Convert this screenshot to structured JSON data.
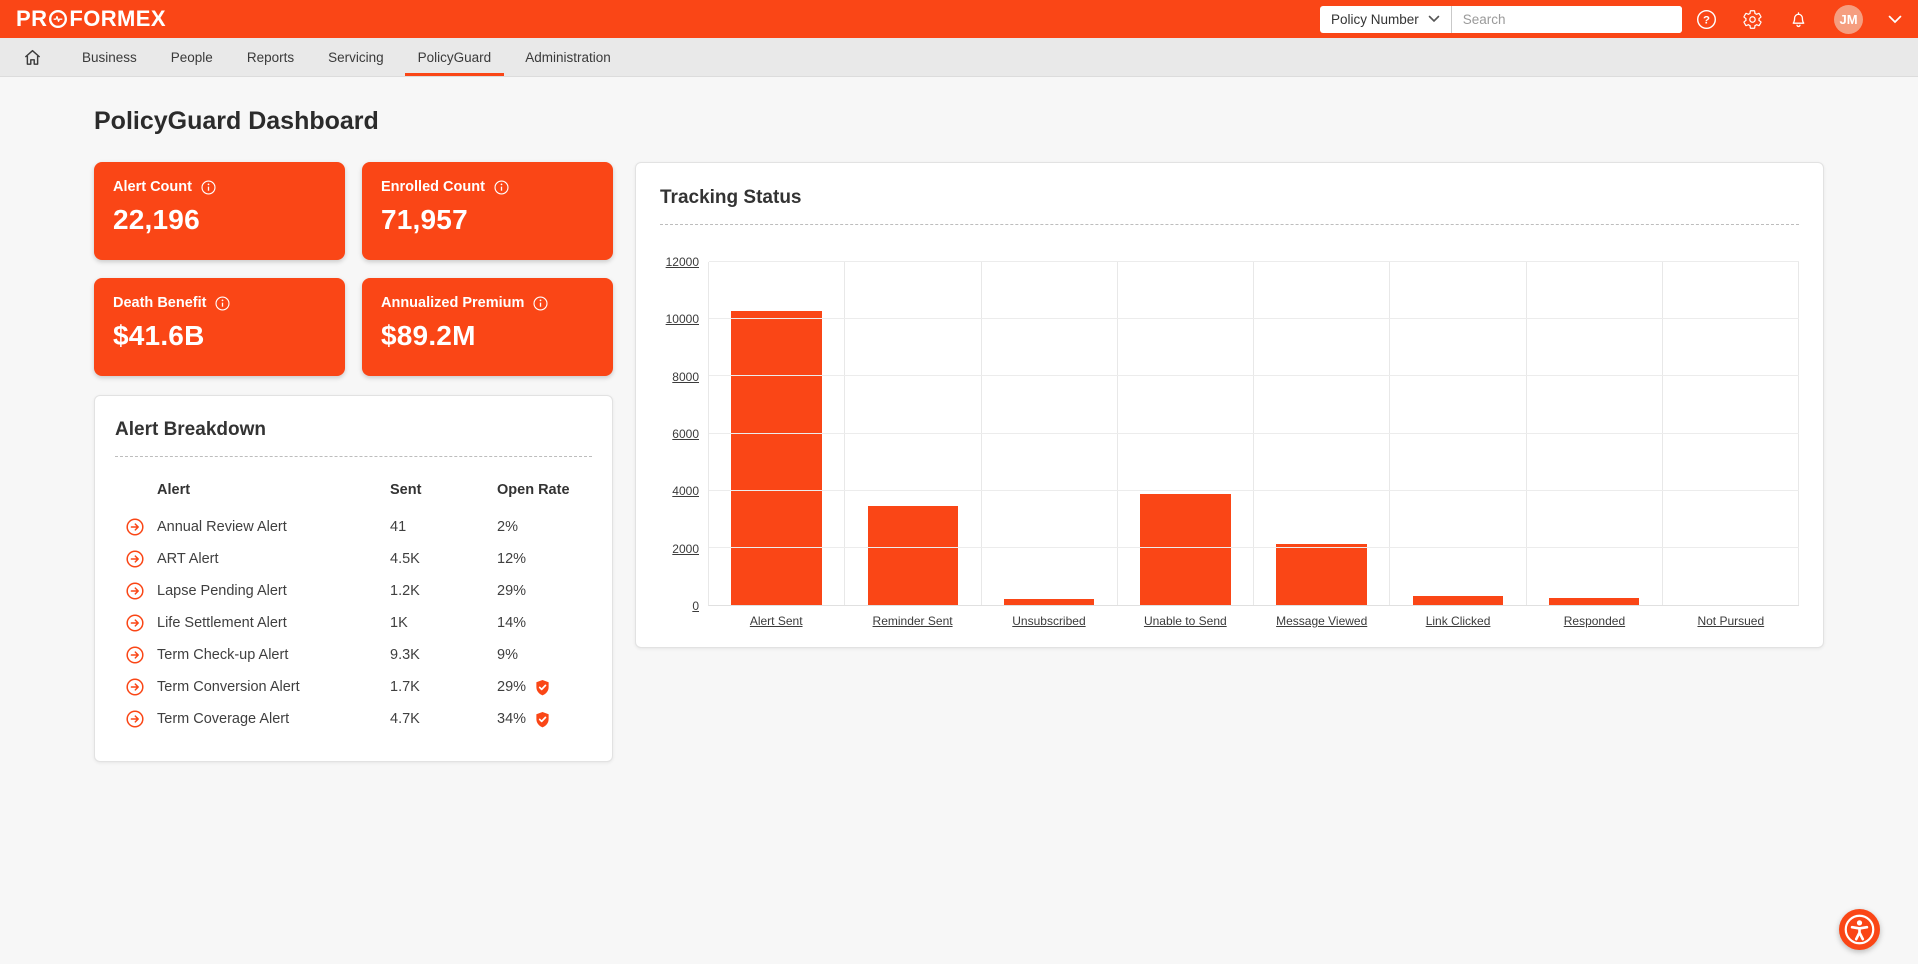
{
  "colors": {
    "brand": "#FA4616",
    "avatar_bg": "#F59E80",
    "bar": "#FA4616",
    "nav_bg": "#e9e9e9"
  },
  "header": {
    "logo_pre": "PR",
    "logo_post": "FORMEX",
    "search_filter": "Policy Number",
    "search_placeholder": "Search",
    "avatar_initials": "JM"
  },
  "nav": {
    "active": "PolicyGuard",
    "items": [
      "Business",
      "People",
      "Reports",
      "Servicing",
      "PolicyGuard",
      "Administration"
    ]
  },
  "page": {
    "title": "PolicyGuard Dashboard"
  },
  "metric_cards": [
    {
      "label": "Alert Count",
      "value": "22,196"
    },
    {
      "label": "Enrolled Count",
      "value": "71,957"
    },
    {
      "label": "Death Benefit",
      "value": "$41.6B"
    },
    {
      "label": "Annualized Premium",
      "value": "$89.2M"
    }
  ],
  "alert_breakdown": {
    "title": "Alert Breakdown",
    "columns": [
      "Alert",
      "Sent",
      "Open Rate"
    ],
    "rows": [
      {
        "alert": "Annual Review Alert",
        "sent": "41",
        "open_rate": "2%",
        "shield": false
      },
      {
        "alert": "ART Alert",
        "sent": "4.5K",
        "open_rate": "12%",
        "shield": false
      },
      {
        "alert": "Lapse Pending Alert",
        "sent": "1.2K",
        "open_rate": "29%",
        "shield": false
      },
      {
        "alert": "Life Settlement Alert",
        "sent": "1K",
        "open_rate": "14%",
        "shield": false
      },
      {
        "alert": "Term Check-up Alert",
        "sent": "9.3K",
        "open_rate": "9%",
        "shield": false
      },
      {
        "alert": "Term Conversion Alert",
        "sent": "1.7K",
        "open_rate": "29%",
        "shield": true
      },
      {
        "alert": "Term Coverage Alert",
        "sent": "4.7K",
        "open_rate": "34%",
        "shield": true
      }
    ]
  },
  "chart_data": {
    "type": "bar",
    "title": "Tracking Status",
    "categories": [
      "Alert Sent",
      "Reminder Sent",
      "Unsubscribed",
      "Unable to Send",
      "Message Viewed",
      "Link Clicked",
      "Responded",
      "Not Pursued"
    ],
    "values": [
      10300,
      3450,
      200,
      3900,
      2150,
      320,
      250,
      0
    ],
    "xlabel": "",
    "ylabel": "",
    "ylim": [
      0,
      12000
    ],
    "yticks": [
      0,
      2000,
      4000,
      6000,
      8000,
      10000,
      12000
    ],
    "grid": true,
    "legend": false,
    "bar_color": "#FA4616"
  }
}
